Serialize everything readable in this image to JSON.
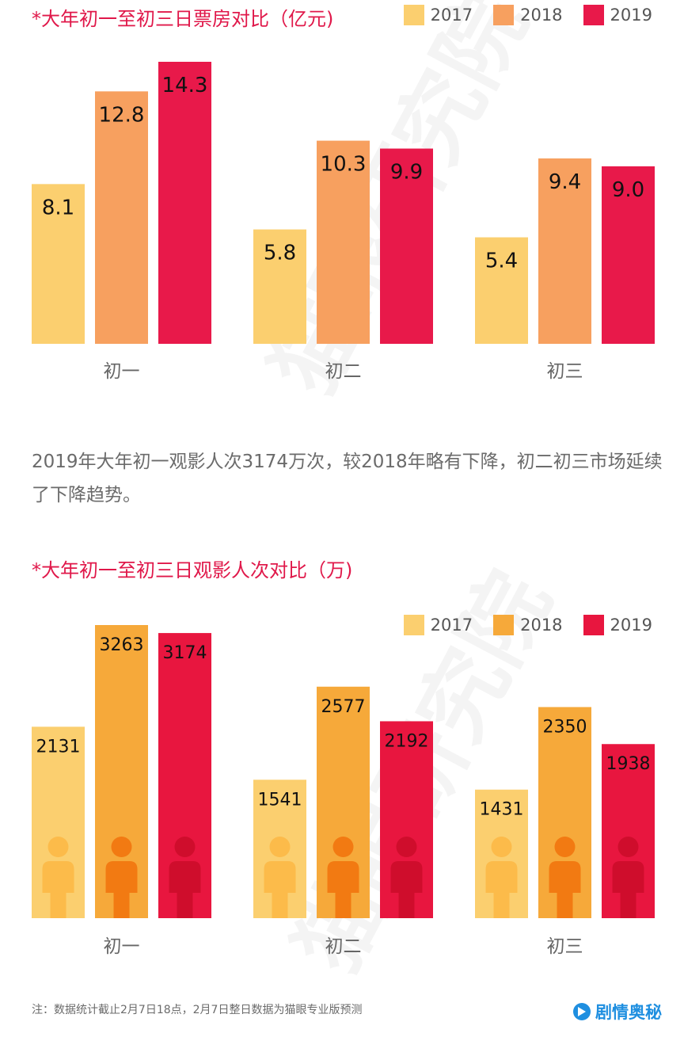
{
  "colors": {
    "y2017": "#fbcf6f",
    "y2018": "#f7a05f",
    "y2019": "#e8194a",
    "y2018b": "#f6a93a",
    "y2019b": "#e8163f"
  },
  "watermark": "猫眼研究院",
  "chart_data": [
    {
      "type": "bar",
      "title": "*大年初一至初三日票房对比（亿元)",
      "categories": [
        "初一",
        "初二",
        "初三"
      ],
      "series": [
        {
          "name": "2017",
          "values": [
            8.1,
            5.8,
            5.4
          ],
          "labels": [
            "8.1",
            "5.8",
            "5.4"
          ]
        },
        {
          "name": "2018",
          "values": [
            12.8,
            10.3,
            9.4
          ],
          "labels": [
            "12.8",
            "10.3",
            "9.4"
          ]
        },
        {
          "name": "2019",
          "values": [
            14.3,
            9.9,
            9.0
          ],
          "labels": [
            "14.3",
            "9.9",
            "9.0"
          ]
        }
      ],
      "ylim": [
        0,
        14.3
      ],
      "legend": "top-right"
    },
    {
      "type": "bar",
      "title": "*大年初一至初三日观影人次对比（万)",
      "categories": [
        "初一",
        "初二",
        "初三"
      ],
      "series": [
        {
          "name": "2017",
          "values": [
            2131,
            1541,
            1431
          ],
          "labels": [
            "2131",
            "1541",
            "1431"
          ]
        },
        {
          "name": "2018",
          "values": [
            3263,
            2577,
            2350
          ],
          "labels": [
            "3263",
            "2577",
            "2350"
          ]
        },
        {
          "name": "2019",
          "values": [
            3174,
            2192,
            1938
          ],
          "labels": [
            "3174",
            "2192",
            "1938"
          ]
        }
      ],
      "ylim": [
        0,
        3263
      ],
      "legend": "top-right"
    }
  ],
  "paragraph": "2019年大年初一观影人次3174万次，较2018年略有下降，初二初三市场延续了下降趋势。",
  "footnote": "注：数据统计截止2月7日18点，2月7日整日数据为猫眼专业版预测",
  "brand": "剧情奥秘"
}
